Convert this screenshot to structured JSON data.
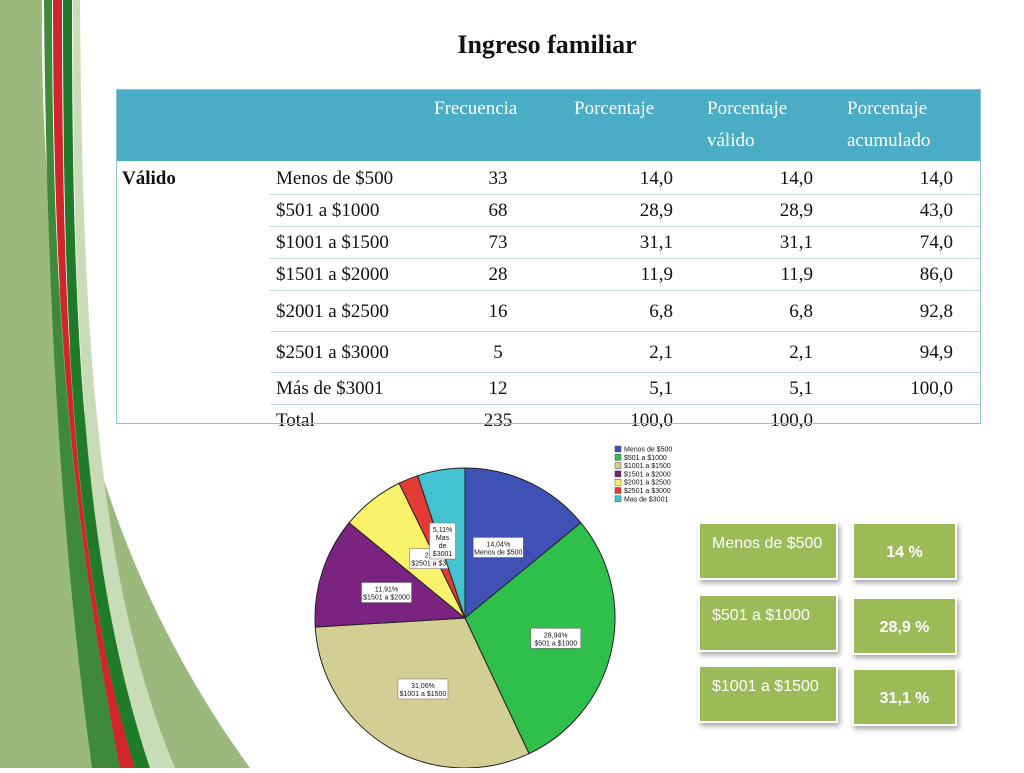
{
  "title": "Ingreso familiar",
  "table": {
    "headers": [
      "",
      "",
      "Frecuencia",
      "Porcentaje",
      "Porcentaje válido",
      "Porcentaje acumulado"
    ],
    "group_label": "Válido",
    "rows": [
      {
        "label": "Menos de $500",
        "frecuencia": "33",
        "porcentaje": "14,0",
        "valido": "14,0",
        "acumulado": "14,0"
      },
      {
        "label": "$501 a $1000",
        "frecuencia": "68",
        "porcentaje": "28,9",
        "valido": "28,9",
        "acumulado": "43,0"
      },
      {
        "label": "$1001 a $1500",
        "frecuencia": "73",
        "porcentaje": "31,1",
        "valido": "31,1",
        "acumulado": "74,0"
      },
      {
        "label": "$1501 a $2000",
        "frecuencia": "28",
        "porcentaje": "11,9",
        "valido": "11,9",
        "acumulado": "86,0"
      },
      {
        "label": "$2001 a $2500",
        "frecuencia": "16",
        "porcentaje": "6,8",
        "valido": "6,8",
        "acumulado": "92,8"
      },
      {
        "label": "$2501 a $3000",
        "frecuencia": "5",
        "porcentaje": "2,1",
        "valido": "2,1",
        "acumulado": "94,9"
      },
      {
        "label": "Más de $3001",
        "frecuencia": "12",
        "porcentaje": "5,1",
        "valido": "5,1",
        "acumulado": "100,0"
      },
      {
        "label": "Total",
        "frecuencia": "235",
        "porcentaje": "100,0",
        "valido": "100,0",
        "acumulado": ""
      }
    ]
  },
  "chart_data": {
    "type": "pie",
    "categories": [
      "Menos de $500",
      "$501 a $1000",
      "$1001 a $1500",
      "$1501 a $2000",
      "$2001 a $2500",
      "$2501 a $3000",
      "Mas de $3001"
    ],
    "values": [
      14.04,
      28.94,
      31.06,
      11.91,
      6.81,
      2.13,
      5.11
    ],
    "colors": [
      "#3f51b5",
      "#2ec04b",
      "#d3cf94",
      "#7b2380",
      "#f8f36a",
      "#e53b35",
      "#42c3cf"
    ],
    "slice_labels": [
      {
        "pct": "14,04%",
        "name": "Menos de $500"
      },
      {
        "pct": "28,94%",
        "name": "$501 a $1000"
      },
      {
        "pct": "31,06%",
        "name": "$1001 a $1500"
      },
      {
        "pct": "11,91%",
        "name": "$1501 a $2000"
      },
      null,
      {
        "pct": "2,13%",
        "name": "$2501 a $3000"
      },
      {
        "pct": "5,11%",
        "name": "Mas de $3001"
      }
    ],
    "legend": [
      "Menos de $500",
      "$501 a $1000",
      "$1001 a $1500",
      "$1501 a $2000",
      "$2001 a $2500",
      "$2501 a $3000",
      "Mas de $3001"
    ],
    "legend_position": "top-right"
  },
  "summary": [
    {
      "label": "Menos de $500",
      "value": "14 %"
    },
    {
      "label": "$501 a $1000",
      "value": "28,9 %"
    },
    {
      "label": "$1001 a  $1500",
      "value": "31,1 %"
    }
  ],
  "theme": {
    "header_bg": "#4bacc6",
    "box_bg": "#9bbb59",
    "banner_green": "#1e8a2e",
    "banner_red": "#d0262b"
  }
}
